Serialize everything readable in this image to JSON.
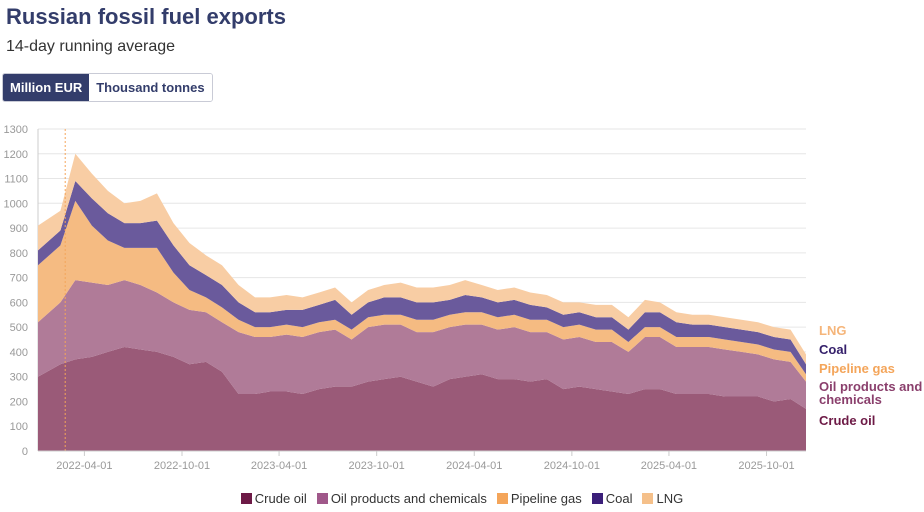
{
  "header": {
    "title": "Russian fossil fuel exports",
    "subtitle": "14-day running average"
  },
  "toggle": {
    "options": [
      "Million EUR",
      "Thousand tonnes"
    ],
    "selected": "Million EUR"
  },
  "chart_data": {
    "type": "area",
    "stacked": true,
    "title": "Russian fossil fuel exports",
    "subtitle": "14-day running average",
    "ylabel": "Million EUR",
    "ylim": [
      0,
      1300
    ],
    "yticks": [
      0,
      100,
      200,
      300,
      400,
      500,
      600,
      700,
      800,
      900,
      1000,
      1100,
      1200,
      1300
    ],
    "xlim": [
      "2022-01-04",
      "2025-12-14"
    ],
    "xticks": [
      "2022-04-01",
      "2022-10-01",
      "2023-04-01",
      "2023-10-01",
      "2024-04-01",
      "2024-10-01",
      "2025-04-01",
      "2025-10-01"
    ],
    "annotation_date": "2022-02-24",
    "grid": true,
    "legend_position": "bottom",
    "x": [
      "2022-01-15",
      "2022-02-15",
      "2022-03-15",
      "2022-04-15",
      "2022-05-15",
      "2022-06-15",
      "2022-07-15",
      "2022-08-15",
      "2022-09-15",
      "2022-10-15",
      "2022-11-15",
      "2022-12-15",
      "2023-01-15",
      "2023-02-15",
      "2023-03-15",
      "2023-04-15",
      "2023-05-15",
      "2023-06-15",
      "2023-07-15",
      "2023-08-15",
      "2023-09-15",
      "2023-10-15",
      "2023-11-15",
      "2023-12-15",
      "2024-01-15",
      "2024-02-15",
      "2024-03-15",
      "2024-04-15",
      "2024-05-15",
      "2024-06-15",
      "2024-07-15",
      "2024-08-15",
      "2024-09-15",
      "2024-10-15",
      "2024-11-15",
      "2024-12-15",
      "2025-01-15",
      "2025-02-15",
      "2025-03-15",
      "2025-04-15",
      "2025-05-15",
      "2025-06-15",
      "2025-07-15",
      "2025-08-15",
      "2025-09-15",
      "2025-10-15",
      "2025-11-15",
      "2025-12-10"
    ],
    "series": [
      {
        "name": "Crude oil",
        "fill": "#9a5a78",
        "legend_color": "#6d1a46",
        "label_color": "#6d1a46",
        "values": [
          300,
          350,
          370,
          380,
          400,
          420,
          410,
          400,
          380,
          350,
          360,
          320,
          230,
          230,
          240,
          240,
          230,
          250,
          260,
          260,
          280,
          290,
          300,
          280,
          260,
          290,
          300,
          310,
          290,
          290,
          280,
          290,
          250,
          260,
          250,
          240,
          230,
          250,
          250,
          230,
          230,
          230,
          220,
          220,
          220,
          200,
          210,
          170
        ]
      },
      {
        "name": "Oil products and chemicals",
        "fill": "#b07b98",
        "legend_color": "#a0588a",
        "label_color": "#8a3f6c",
        "values": [
          220,
          250,
          320,
          300,
          270,
          270,
          260,
          240,
          220,
          220,
          200,
          200,
          250,
          230,
          220,
          230,
          230,
          230,
          230,
          190,
          220,
          220,
          210,
          200,
          220,
          210,
          210,
          200,
          200,
          210,
          200,
          190,
          200,
          200,
          190,
          200,
          170,
          210,
          210,
          190,
          190,
          190,
          190,
          180,
          170,
          170,
          150,
          110
        ]
      },
      {
        "name": "Pipeline gas",
        "fill": "#f5bb82",
        "legend_color": "#f4a55a",
        "label_color": "#f4a55a",
        "values": [
          230,
          230,
          320,
          230,
          180,
          130,
          150,
          180,
          120,
          80,
          60,
          60,
          50,
          40,
          40,
          40,
          40,
          40,
          40,
          40,
          40,
          40,
          40,
          50,
          50,
          50,
          50,
          50,
          50,
          50,
          50,
          50,
          50,
          50,
          50,
          50,
          40,
          40,
          40,
          40,
          40,
          40,
          40,
          40,
          40,
          40,
          40,
          30
        ]
      },
      {
        "name": "Coal",
        "fill": "#6a5a9c",
        "legend_color": "#3b1f7a",
        "label_color": "#35206b",
        "values": [
          60,
          60,
          80,
          110,
          110,
          100,
          100,
          110,
          110,
          100,
          90,
          90,
          70,
          60,
          60,
          60,
          70,
          70,
          80,
          60,
          60,
          70,
          70,
          70,
          70,
          60,
          70,
          60,
          60,
          60,
          60,
          50,
          50,
          50,
          50,
          50,
          50,
          60,
          60,
          60,
          50,
          50,
          50,
          50,
          50,
          50,
          50,
          40
        ]
      },
      {
        "name": "LNG",
        "fill": "#f8cda4",
        "legend_color": "#f5c08a",
        "label_color": "#f5b57a",
        "values": [
          100,
          80,
          110,
          100,
          90,
          80,
          90,
          110,
          90,
          90,
          80,
          80,
          70,
          60,
          60,
          60,
          50,
          50,
          50,
          50,
          50,
          50,
          60,
          60,
          60,
          60,
          60,
          50,
          50,
          50,
          50,
          50,
          50,
          40,
          50,
          50,
          50,
          50,
          40,
          40,
          40,
          40,
          40,
          40,
          40,
          40,
          40,
          40
        ]
      }
    ],
    "end_labels": [
      "LNG",
      "Coal",
      "Pipeline gas",
      "Oil products and chemicals",
      "Crude oil"
    ]
  }
}
